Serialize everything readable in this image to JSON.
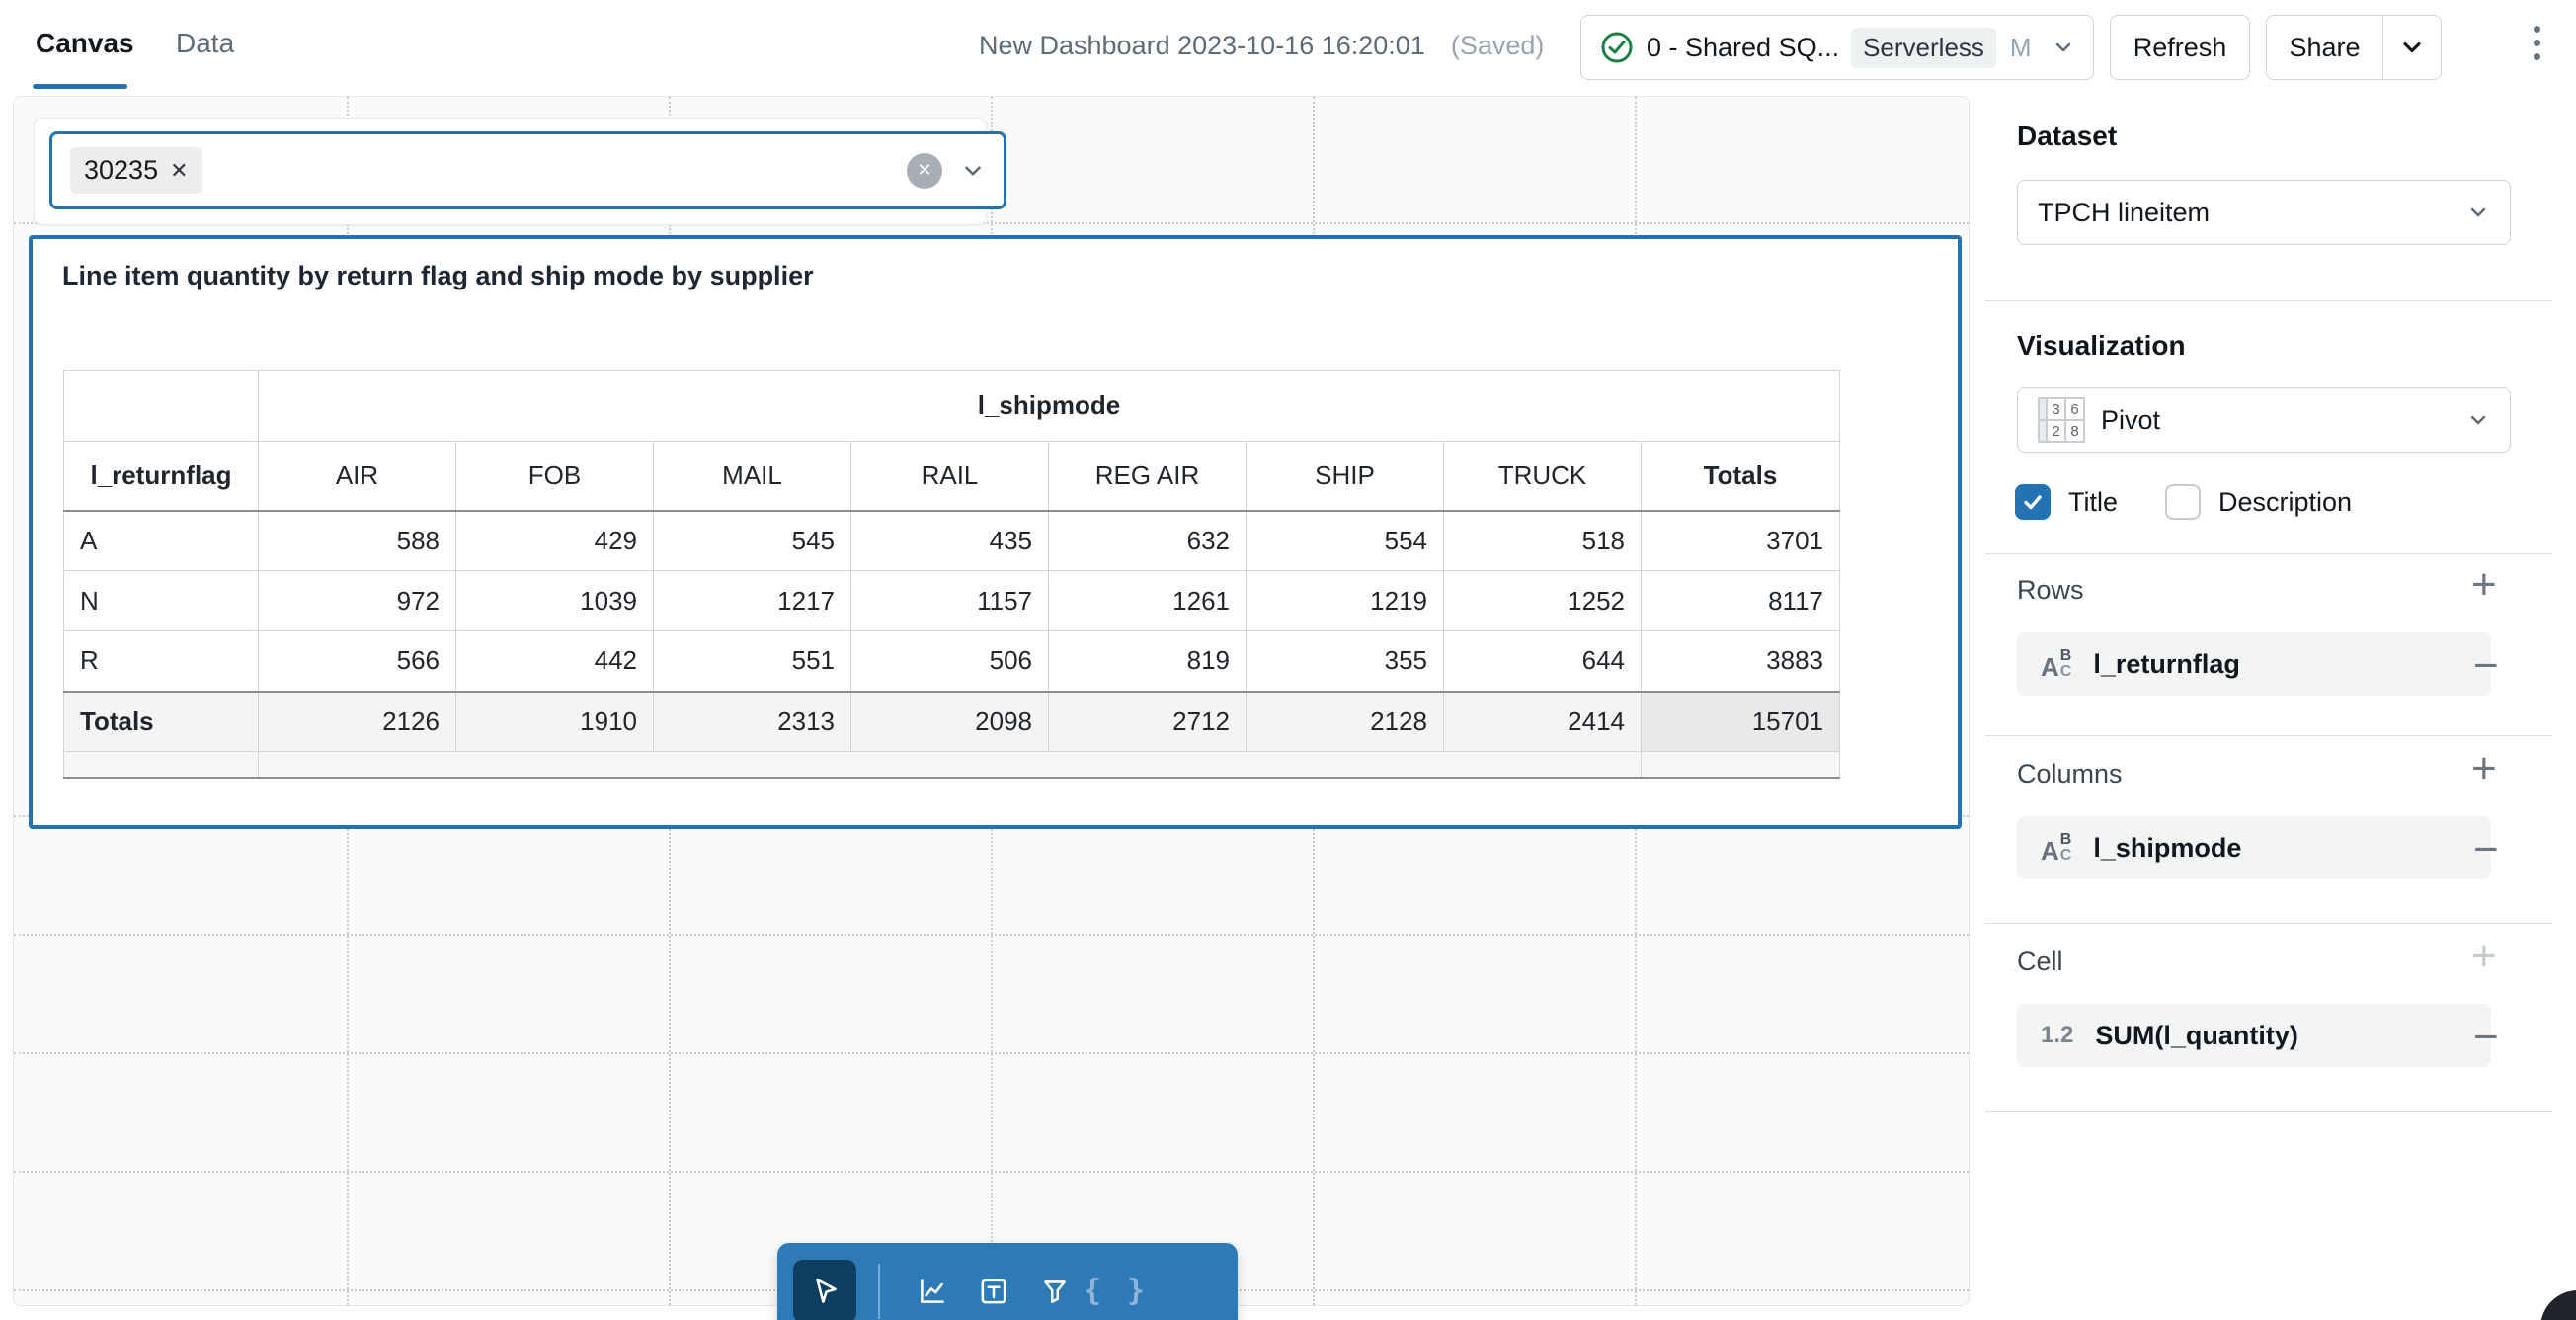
{
  "topbar": {
    "tabs": [
      {
        "label": "Canvas"
      },
      {
        "label": "Data"
      }
    ],
    "title": "New Dashboard 2023-10-16 16:20:01",
    "saved_badge": "(Saved)",
    "warehouse": {
      "name": "0 - Shared SQ...",
      "badge": "Serverless",
      "size": "M"
    },
    "refresh_label": "Refresh",
    "share_label": "Share"
  },
  "canvas": {
    "filter": {
      "chip_value": "30235"
    },
    "widget": {
      "title": "Line item quantity by return flag and ship mode by supplier",
      "pivot": {
        "col_dimension": "l_shipmode",
        "row_dimension": "l_returnflag",
        "columns": [
          "AIR",
          "FOB",
          "MAIL",
          "RAIL",
          "REG AIR",
          "SHIP",
          "TRUCK"
        ],
        "totals_label": "Totals",
        "rows": [
          {
            "label": "A",
            "values": [
              588,
              429,
              545,
              435,
              632,
              554,
              518
            ],
            "total": 3701
          },
          {
            "label": "N",
            "values": [
              972,
              1039,
              1217,
              1157,
              1261,
              1219,
              1252
            ],
            "total": 8117
          },
          {
            "label": "R",
            "values": [
              566,
              442,
              551,
              506,
              819,
              355,
              644
            ],
            "total": 3883
          }
        ],
        "totals_row": {
          "label": "Totals",
          "values": [
            2126,
            1910,
            2313,
            2098,
            2712,
            2128,
            2414
          ],
          "total": 15701
        }
      }
    }
  },
  "toolbar": {
    "tools": [
      "cursor",
      "chart",
      "text",
      "filter",
      "code"
    ]
  },
  "sidebar": {
    "dataset_label": "Dataset",
    "dataset_value": "TPCH lineitem",
    "visualization_label": "Visualization",
    "visualization_value": "Pivot",
    "title_checkbox": "Title",
    "description_checkbox": "Description",
    "sections": [
      {
        "label": "Rows",
        "field": "l_returnflag",
        "field_type": "string"
      },
      {
        "label": "Columns",
        "field": "l_shipmode",
        "field_type": "string"
      },
      {
        "label": "Cell",
        "field": "SUM(l_quantity)",
        "field_type": "number"
      }
    ]
  },
  "colors": {
    "accent_blue": "#2272b4",
    "toolbar_blue": "#2d7ab6",
    "active_tool_navy": "#0d3d60",
    "success_green": "#1b8042"
  }
}
